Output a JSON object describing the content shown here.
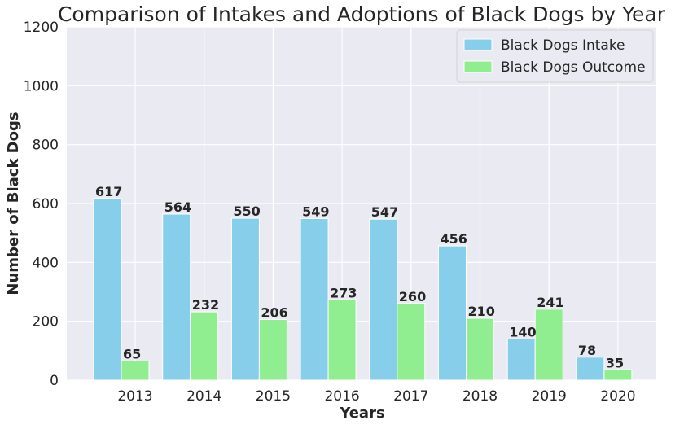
{
  "chart_data": {
    "type": "bar",
    "title": "Comparison of Intakes and Adoptions of Black Dogs by Year",
    "xlabel": "Years",
    "ylabel": "Number of Black Dogs",
    "categories": [
      "2013",
      "2014",
      "2015",
      "2016",
      "2017",
      "2018",
      "2019",
      "2020"
    ],
    "series": [
      {
        "name": "Black Dogs Intake",
        "values": [
          617,
          564,
          550,
          549,
          547,
          456,
          140,
          78
        ],
        "color": "#87ceeb"
      },
      {
        "name": "Black Dogs Outcome",
        "values": [
          65,
          232,
          206,
          273,
          260,
          210,
          241,
          35
        ],
        "color": "#90ee90"
      }
    ],
    "ylim": [
      0,
      1200
    ],
    "yticks": [
      0,
      200,
      400,
      600,
      800,
      1000,
      1200
    ],
    "grid": true,
    "legend_position": "top-right",
    "background_color": "#eaeaf2"
  }
}
